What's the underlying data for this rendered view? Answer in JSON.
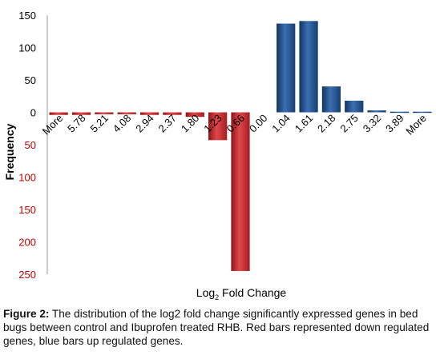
{
  "chart_data": {
    "type": "bar",
    "categories": [
      "More",
      "5.78",
      "5.21",
      "4.08",
      "2.94",
      "2.37",
      "1.80",
      "1.23",
      "0.66",
      "0.00",
      "1.04",
      "1.61",
      "2.18",
      "2.75",
      "3.32",
      "3.89",
      "More"
    ],
    "series": [
      {
        "name": "down",
        "color": "#c0292b",
        "values": [
          -4,
          -4,
          -3,
          -3,
          -4,
          -4,
          -7,
          -43,
          -245,
          0,
          0,
          0,
          0,
          0,
          0,
          0,
          0
        ]
      },
      {
        "name": "up",
        "color": "#1f4e8c",
        "values": [
          0,
          0,
          0,
          0,
          0,
          0,
          0,
          0,
          0,
          0,
          137,
          141,
          40,
          18,
          3,
          1,
          1
        ]
      }
    ],
    "ylim": [
      -250,
      150
    ],
    "y_ticks": [
      {
        "value": 150,
        "label": "150"
      },
      {
        "value": 100,
        "label": "100"
      },
      {
        "value": 50,
        "label": "50"
      },
      {
        "value": 0,
        "label": "0"
      },
      {
        "value": -50,
        "label": "50"
      },
      {
        "value": -100,
        "label": "100"
      },
      {
        "value": -150,
        "label": "150"
      },
      {
        "value": -200,
        "label": "200"
      },
      {
        "value": -250,
        "label": "250"
      }
    ],
    "ylabel": "Frequency",
    "xlabel": "Log",
    "xlabel_sub": "2",
    "xlabel_rest": " Fold Change",
    "grid": false
  },
  "caption": {
    "label": "Figure 2:",
    "text": " The distribution of the log2 fold change significantly expressed genes in bed bugs between control and Ibuprofen treated RHB. Red bars represented down regulated genes, blue bars up regulated genes."
  },
  "colors": {
    "down": "#c0292b",
    "up": "#1f4e8c",
    "axis_negative": "#c00000",
    "axis_positive": "#000000"
  }
}
